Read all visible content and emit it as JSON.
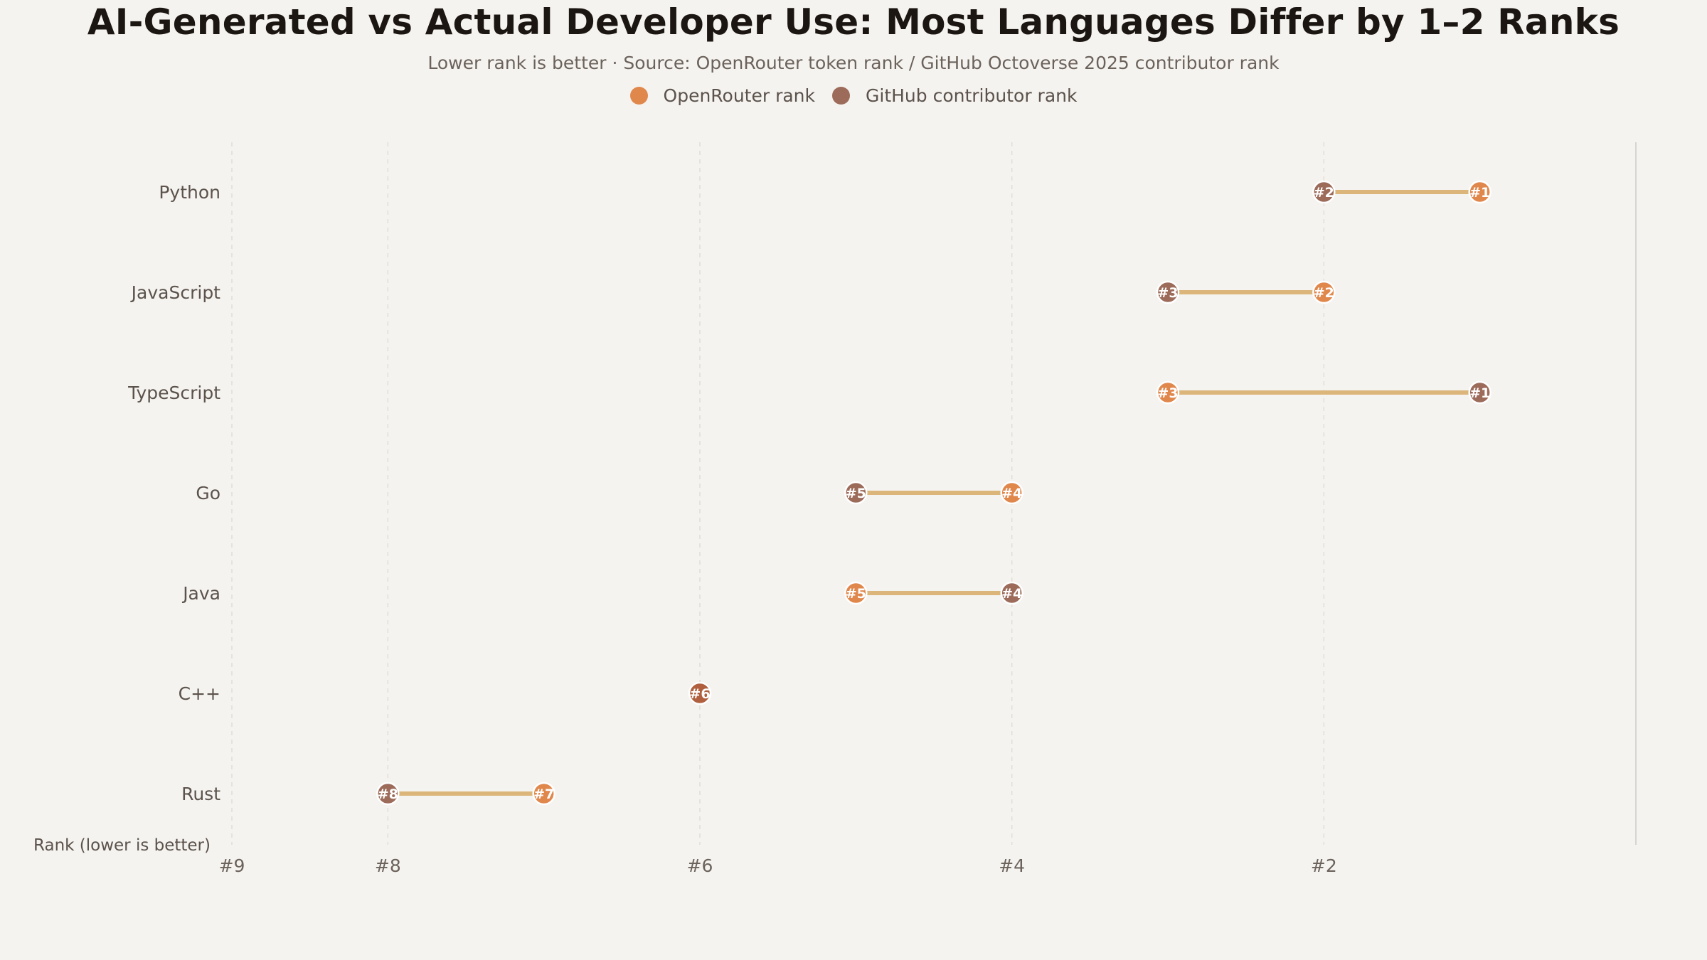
{
  "title": "AI-Generated vs Actual Developer Use: Most Languages Differ by 1–2 Ranks",
  "subtitle": "Lower rank is better · Source: OpenRouter token rank / GitHub Octoverse 2025 contributor rank",
  "legend": [
    {
      "label": "OpenRouter rank",
      "color": "#e0874c"
    },
    {
      "label": "GitHub contributor rank",
      "color": "#9c6b5a"
    }
  ],
  "chart_data": {
    "type": "dumbbell",
    "title": "AI-Generated vs Actual Developer Use: Most Languages Differ by 1–2 Ranks",
    "subtitle": "Lower rank is better · Source: OpenRouter token rank / GitHub Octoverse 2025 contributor rank",
    "xlabel": "Rank (lower is better)",
    "ylabel": "",
    "xlim": [
      9,
      0
    ],
    "x_reversed": true,
    "x_ticks": [
      9,
      8,
      6,
      4,
      2
    ],
    "x_tick_labels": [
      "#9",
      "#8",
      "#6",
      "#4",
      "#2"
    ],
    "grid": "vertical-dashed",
    "legend_position": "top-center",
    "categories": [
      "Python",
      "JavaScript",
      "TypeScript",
      "Go",
      "Java",
      "C++",
      "Rust"
    ],
    "series": [
      {
        "name": "OpenRouter rank",
        "color": "#e0874c",
        "values": [
          1,
          2,
          3,
          4,
          5,
          6,
          7
        ]
      },
      {
        "name": "GitHub contributor rank",
        "color": "#9c6b5a",
        "values": [
          2,
          3,
          1,
          5,
          4,
          6,
          8
        ]
      }
    ],
    "connector_color": "#dcb57a",
    "tie_color": "#b0603e"
  }
}
